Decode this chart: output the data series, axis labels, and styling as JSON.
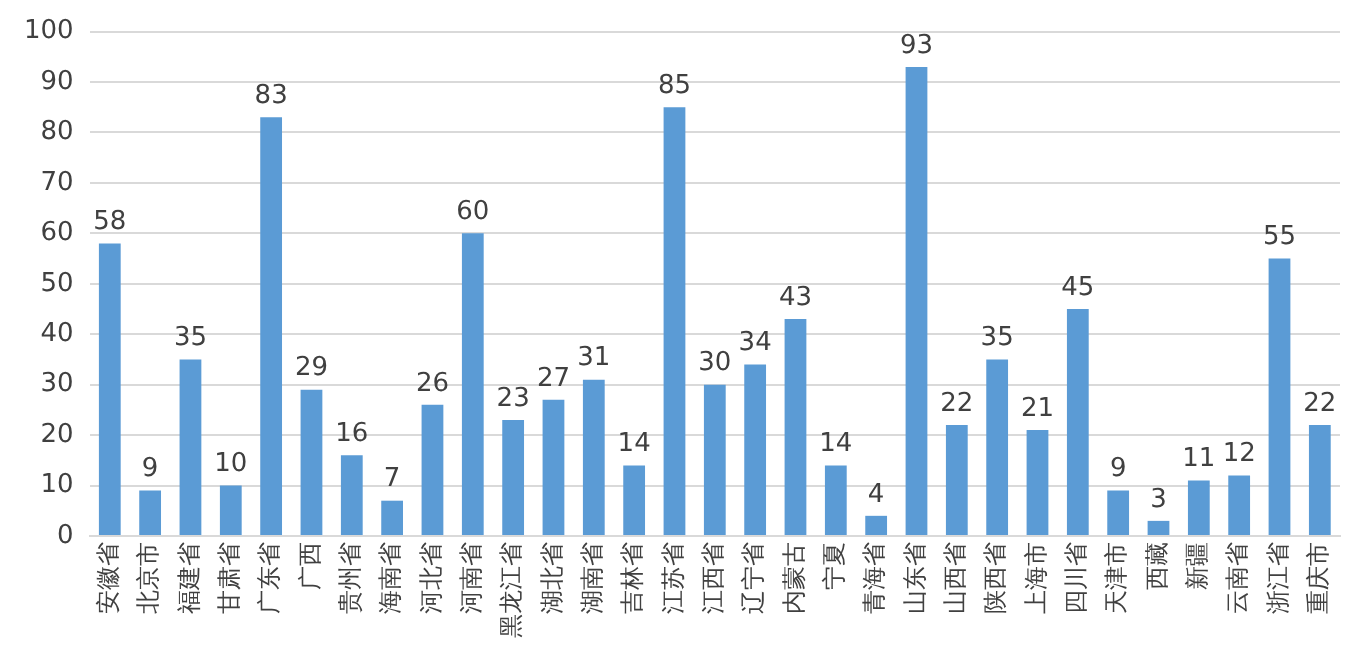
{
  "chart_data": {
    "type": "bar",
    "categories": [
      "安徽省",
      "北京市",
      "福建省",
      "甘肃省",
      "广东省",
      "广西",
      "贵州省",
      "海南省",
      "河北省",
      "河南省",
      "黑龙江省",
      "湖北省",
      "湖南省",
      "吉林省",
      "江苏省",
      "江西省",
      "辽宁省",
      "内蒙古",
      "宁夏",
      "青海省",
      "山东省",
      "山西省",
      "陕西省",
      "上海市",
      "四川省",
      "天津市",
      "西藏",
      "新疆",
      "云南省",
      "浙江省",
      "重庆市"
    ],
    "values": [
      58,
      9,
      35,
      10,
      83,
      29,
      16,
      7,
      26,
      60,
      23,
      27,
      31,
      14,
      85,
      30,
      34,
      43,
      14,
      4,
      93,
      22,
      35,
      21,
      45,
      9,
      3,
      11,
      12,
      55,
      22
    ],
    "color": "#5b9bd5",
    "ylim": [
      0,
      100
    ],
    "yticks": [
      0,
      10,
      20,
      30,
      40,
      50,
      60,
      70,
      80,
      90,
      100
    ],
    "grid": "y",
    "data_labels": true,
    "legend": false
  }
}
